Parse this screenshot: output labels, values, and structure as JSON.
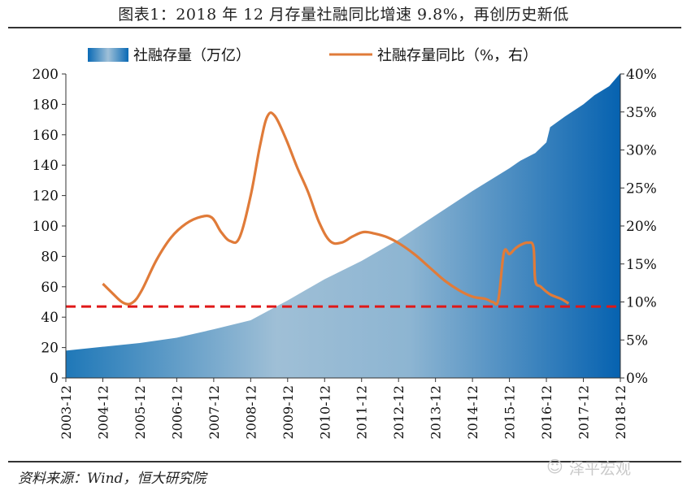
{
  "header": {
    "title": "图表1：2018 年 12 月存量社融同比增速 9.8%，再创历史新低"
  },
  "footer": {
    "source": "资料来源：Wind，恒大研究院",
    "watermark": "泽平宏观",
    "watermark_icon": "wechat-icon"
  },
  "colors": {
    "area_dark": "#0a6ab5",
    "area_light": "#9fc0d8",
    "line": "#e07b39",
    "refline": "#e01818"
  },
  "chart_data": {
    "type": "area+line",
    "title": "图表1：2018 年 12 月存量社融同比增速 9.8%，再创历史新低",
    "legend": [
      {
        "name": "社融存量（万亿）",
        "kind": "area"
      },
      {
        "name": "社融存量同比（%，右）",
        "kind": "line"
      }
    ],
    "legend_position": "top",
    "categories": [
      "2003-12",
      "2004-12",
      "2005-12",
      "2006-12",
      "2007-12",
      "2008-12",
      "2009-12",
      "2010-12",
      "2011-12",
      "2012-12",
      "2013-12",
      "2014-12",
      "2015-12",
      "2016-12",
      "2017-12",
      "2018-12"
    ],
    "y_left": {
      "min": 0,
      "max": 200,
      "ticks": [
        0,
        20,
        40,
        60,
        80,
        100,
        120,
        140,
        160,
        180,
        200
      ]
    },
    "y_right": {
      "min": 0,
      "max": 40,
      "ticks": [
        "0%",
        "5%",
        "10%",
        "15%",
        "20%",
        "25%",
        "30%",
        "35%",
        "40%"
      ]
    },
    "series": [
      {
        "name": "社融存量（万亿）",
        "axis": "left",
        "type": "area",
        "points": [
          [
            0,
            18
          ],
          [
            1,
            20.5
          ],
          [
            2,
            23
          ],
          [
            3,
            26.5
          ],
          [
            4,
            32
          ],
          [
            5,
            38
          ],
          [
            6,
            51
          ],
          [
            7,
            65
          ],
          [
            8,
            77
          ],
          [
            9,
            91
          ],
          [
            10,
            107
          ],
          [
            11,
            123
          ],
          [
            12,
            138
          ],
          [
            12.3,
            143
          ],
          [
            12.7,
            148
          ],
          [
            13.0,
            155
          ],
          [
            13.1,
            165
          ],
          [
            13.5,
            172
          ],
          [
            14,
            180
          ],
          [
            14.3,
            186
          ],
          [
            14.7,
            192
          ],
          [
            15,
            200.5
          ]
        ]
      },
      {
        "name": "社融存量同比（%，右）",
        "axis": "right",
        "type": "line",
        "points": [
          [
            1,
            12.4
          ],
          [
            1.25,
            11.2
          ],
          [
            1.55,
            9.9
          ],
          [
            1.8,
            9.9
          ],
          [
            2.05,
            11.5
          ],
          [
            2.45,
            15.5
          ],
          [
            2.85,
            18.5
          ],
          [
            3.25,
            20.3
          ],
          [
            3.65,
            21.2
          ],
          [
            3.95,
            21.1
          ],
          [
            4.2,
            19.2
          ],
          [
            4.45,
            18
          ],
          [
            4.7,
            18.5
          ],
          [
            5.0,
            24
          ],
          [
            5.25,
            30.5
          ],
          [
            5.45,
            34.4
          ],
          [
            5.65,
            34.5
          ],
          [
            5.95,
            31.5
          ],
          [
            6.25,
            27.8
          ],
          [
            6.55,
            24.5
          ],
          [
            6.85,
            20.5
          ],
          [
            7.15,
            18
          ],
          [
            7.45,
            17.8
          ],
          [
            7.75,
            18.6
          ],
          [
            8.05,
            19.2
          ],
          [
            8.35,
            19
          ],
          [
            8.7,
            18.5
          ],
          [
            9.05,
            17.6
          ],
          [
            9.45,
            16.2
          ],
          [
            9.85,
            14.5
          ],
          [
            10.25,
            12.8
          ],
          [
            10.65,
            11.5
          ],
          [
            11,
            10.7
          ],
          [
            11.35,
            10.4
          ],
          [
            11.55,
            10
          ],
          [
            11.7,
            10.3
          ],
          [
            11.85,
            16.5
          ],
          [
            12.0,
            16.3
          ],
          [
            12.15,
            17
          ],
          [
            12.3,
            17.5
          ],
          [
            12.5,
            17.8
          ],
          [
            12.65,
            17.2
          ],
          [
            12.7,
            12.8
          ],
          [
            12.85,
            12
          ],
          [
            13.1,
            11
          ],
          [
            13.4,
            10.4
          ],
          [
            13.6,
            9.8
          ]
        ]
      }
    ],
    "reference_line": {
      "axis": "right",
      "value": 9.4,
      "style": "dashed"
    }
  }
}
